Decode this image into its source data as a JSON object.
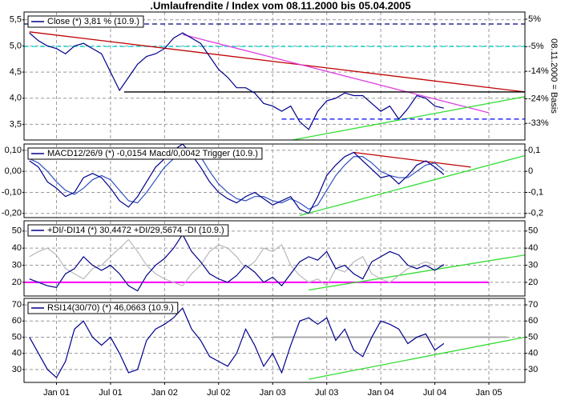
{
  "chart_data": [
    {
      "type": "line",
      "title": ".Umlaufrendite / Index vom 08.11.2000 bis 05.04.2005",
      "y2label": "08.11.2000 = Basis",
      "x": [
        -3,
        -2,
        -1,
        0,
        1,
        2,
        3,
        4,
        5,
        6,
        7,
        8,
        9,
        10,
        11,
        12,
        13,
        14,
        15,
        16,
        17,
        18,
        19,
        20,
        21,
        22,
        23,
        24,
        25,
        26,
        27,
        28,
        29,
        30,
        31,
        32,
        33,
        34,
        35,
        36,
        37,
        38,
        39,
        40,
        41,
        42,
        43
      ],
      "xlim": [
        -3.6,
        52
      ],
      "ylim": [
        3.2,
        5.65
      ],
      "y2lim": [
        -39.05,
        7.62
      ],
      "yticks": [
        {
          "value": 5.5,
          "label": "5,5"
        },
        {
          "value": 5.0,
          "label": "5,0"
        },
        {
          "value": 4.5,
          "label": "4,5"
        },
        {
          "value": 4.0,
          "label": "4,0"
        },
        {
          "value": 3.5,
          "label": "3,5"
        }
      ],
      "y2ticks": [
        {
          "value": 5,
          "label": "5%"
        },
        {
          "value": -5,
          "label": "-5%"
        },
        {
          "value": -14,
          "label": "-14%"
        },
        {
          "value": -24,
          "label": "-24%"
        },
        {
          "value": -33,
          "label": "-33%"
        }
      ],
      "grid": true,
      "series": [
        {
          "name": "Close (*) 3,81 % (10.9.)",
          "color": "#00008b",
          "values": [
            5.25,
            5.1,
            5.0,
            4.95,
            4.85,
            5.0,
            5.05,
            4.95,
            4.85,
            4.5,
            4.15,
            4.4,
            4.65,
            4.8,
            4.85,
            4.95,
            5.15,
            5.25,
            5.15,
            5.05,
            4.8,
            4.55,
            4.4,
            4.2,
            4.2,
            4.1,
            3.9,
            3.85,
            3.75,
            3.85,
            3.55,
            3.4,
            3.75,
            3.95,
            4.0,
            4.1,
            4.05,
            4.05,
            3.9,
            3.75,
            3.85,
            3.6,
            3.8,
            4.05,
            4.0,
            3.85,
            3.81
          ]
        }
      ],
      "lines": [
        {
          "x": [
            -3.6,
            52
          ],
          "y": [
            5.42,
            5.42
          ],
          "color": "#00008b",
          "dash": true
        },
        {
          "x": [
            -3.6,
            52
          ],
          "y": [
            4.99,
            4.99
          ],
          "color": "#00e0e0",
          "dash": true
        },
        {
          "x": [
            -3,
            52
          ],
          "y": [
            5.27,
            4.12
          ],
          "color": "#c00000",
          "dash": false
        },
        {
          "x": [
            14,
            48
          ],
          "y": [
            5.22,
            3.72
          ],
          "color": "#e040e0",
          "dash": false
        },
        {
          "x": [
            7.5,
            52
          ],
          "y": [
            4.12,
            4.12
          ],
          "color": "#000000",
          "dash": false
        },
        {
          "x": [
            26.2,
            52
          ],
          "y": [
            3.2,
            4.03
          ],
          "color": "#33dd33",
          "dash": false
        },
        {
          "x": [
            25,
            52
          ],
          "y": [
            3.6,
            3.6
          ],
          "color": "#0000ff",
          "dash": true
        }
      ]
    },
    {
      "type": "line",
      "x": [
        -3,
        -2,
        -1,
        0,
        1,
        2,
        3,
        4,
        5,
        6,
        7,
        8,
        9,
        10,
        11,
        12,
        13,
        14,
        15,
        16,
        17,
        18,
        19,
        20,
        21,
        22,
        23,
        24,
        25,
        26,
        27,
        28,
        29,
        30,
        31,
        32,
        33,
        34,
        35,
        36,
        37,
        38,
        39,
        40,
        41,
        42,
        43
      ],
      "xlim": [
        -3.6,
        52
      ],
      "ylim": [
        -0.22,
        0.13
      ],
      "y2lim": [
        -0.22,
        0.13
      ],
      "yticks": [
        {
          "value": 0.1,
          "label": "0,10"
        },
        {
          "value": 0,
          "label": "0,00"
        },
        {
          "value": -0.1,
          "label": "-0,10"
        },
        {
          "value": -0.2,
          "label": "-0,20"
        }
      ],
      "y2ticks": [
        {
          "value": 0.1,
          "label": "0,1"
        },
        0,
        {
          "value": -0.1,
          "label": "-0,1"
        },
        {
          "value": -0.2,
          "label": "-0,2"
        }
      ],
      "grid": true,
      "series": [
        {
          "name": "MACD12/26/9 (*) -0,0154 Macd/0,0042 Trigger (10.9.)",
          "color": "#00008b",
          "values": [
            0.05,
            0.02,
            -0.05,
            -0.08,
            -0.12,
            -0.1,
            -0.03,
            -0.01,
            -0.03,
            -0.08,
            -0.14,
            -0.17,
            -0.12,
            -0.05,
            0.02,
            0.06,
            0.1,
            0.13,
            0.08,
            0.02,
            -0.05,
            -0.1,
            -0.13,
            -0.15,
            -0.12,
            -0.1,
            -0.13,
            -0.16,
            -0.14,
            -0.12,
            -0.18,
            -0.2,
            -0.12,
            -0.02,
            0.03,
            0.07,
            0.09,
            0.05,
            0.01,
            -0.03,
            -0.02,
            -0.06,
            -0.02,
            0.03,
            0.05,
            0.02,
            -0.0154
          ]
        },
        {
          "color": "#3050c0",
          "values": [
            0.06,
            0.04,
            0.0,
            -0.05,
            -0.09,
            -0.11,
            -0.08,
            -0.04,
            -0.02,
            -0.04,
            -0.09,
            -0.14,
            -0.15,
            -0.1,
            -0.04,
            0.02,
            0.06,
            0.1,
            0.11,
            0.07,
            0.0,
            -0.06,
            -0.1,
            -0.13,
            -0.14,
            -0.12,
            -0.12,
            -0.14,
            -0.15,
            -0.13,
            -0.15,
            -0.18,
            -0.16,
            -0.09,
            -0.02,
            0.03,
            0.07,
            0.07,
            0.04,
            0.0,
            -0.02,
            -0.03,
            -0.03,
            0.0,
            0.03,
            0.04,
            0.0042
          ]
        }
      ],
      "lines": [
        {
          "x": [
            33,
            46
          ],
          "y": [
            0.09,
            0.02
          ],
          "color": "#c00000",
          "dash": false
        },
        {
          "x": [
            27,
            52
          ],
          "y": [
            -0.21,
            0.075
          ],
          "color": "#33dd33",
          "dash": false
        }
      ]
    },
    {
      "type": "line",
      "x": [
        -3,
        -2,
        -1,
        0,
        1,
        2,
        3,
        4,
        5,
        6,
        7,
        8,
        9,
        10,
        11,
        12,
        13,
        14,
        15,
        16,
        17,
        18,
        19,
        20,
        21,
        22,
        23,
        24,
        25,
        26,
        27,
        28,
        29,
        30,
        31,
        32,
        33,
        34,
        35,
        36,
        37,
        38,
        39,
        40,
        41,
        42,
        43
      ],
      "xlim": [
        -3.6,
        52
      ],
      "ylim": [
        12,
        56
      ],
      "y2lim": [
        12,
        56
      ],
      "yticks": [
        50,
        40,
        30,
        20
      ],
      "y2ticks": [
        50,
        40,
        30,
        20
      ],
      "grid": true,
      "series": [
        {
          "name": "+DI/-DI14 (*) 30,4472 +DI/29,5674 -DI (10.9.)",
          "color": "#00008b",
          "values": [
            22,
            20,
            18,
            17,
            25,
            28,
            35,
            30,
            27,
            30,
            25,
            18,
            15,
            24,
            30,
            34,
            40,
            48,
            38,
            32,
            25,
            22,
            20,
            24,
            30,
            26,
            20,
            23,
            18,
            25,
            32,
            35,
            33,
            38,
            28,
            30,
            25,
            22,
            32,
            35,
            38,
            36,
            30,
            28,
            30,
            27,
            30.4472
          ]
        },
        {
          "color": "#b8b8b8",
          "values": [
            35,
            38,
            40,
            36,
            28,
            25,
            22,
            28,
            30,
            35,
            40,
            45,
            38,
            30,
            25,
            22,
            20,
            18,
            25,
            30,
            38,
            42,
            40,
            35,
            28,
            32,
            40,
            38,
            42,
            30,
            24,
            20,
            22,
            18,
            28,
            26,
            32,
            35,
            25,
            22,
            20,
            24,
            28,
            30,
            32,
            30,
            29.5674
          ]
        }
      ],
      "lines": [
        {
          "x": [
            -3.6,
            48
          ],
          "y": [
            20,
            20
          ],
          "color": "#ff00ff",
          "dash": false,
          "width": 2
        },
        {
          "x": [
            28,
            52
          ],
          "y": [
            15.5,
            36
          ],
          "color": "#33dd33",
          "dash": false
        }
      ]
    },
    {
      "type": "line",
      "x": [
        -3,
        -2,
        -1,
        0,
        1,
        2,
        3,
        4,
        5,
        6,
        7,
        8,
        9,
        10,
        11,
        12,
        13,
        14,
        15,
        16,
        17,
        18,
        19,
        20,
        21,
        22,
        23,
        24,
        25,
        26,
        27,
        28,
        29,
        30,
        31,
        32,
        33,
        34,
        35,
        36,
        37,
        38,
        39,
        40,
        41,
        42,
        43
      ],
      "xlim": [
        -3.6,
        52
      ],
      "ylim": [
        22,
        74
      ],
      "y2lim": [
        22,
        74
      ],
      "yticks": [
        70,
        60,
        50,
        40,
        30
      ],
      "y2ticks": [
        70,
        60,
        50,
        40,
        30
      ],
      "grid": true,
      "xticks": [
        {
          "value": 0,
          "label": "Jan 01"
        },
        {
          "value": 6,
          "label": "Jul 01"
        },
        {
          "value": 12,
          "label": "Jan 02"
        },
        {
          "value": 18,
          "label": "Jul 02"
        },
        {
          "value": 24,
          "label": "Jan 03"
        },
        {
          "value": 30,
          "label": "Jul 03"
        },
        {
          "value": 36,
          "label": "Jan 04"
        },
        {
          "value": 42,
          "label": "Jul 04"
        },
        {
          "value": 48,
          "label": "Jan 05"
        }
      ],
      "series": [
        {
          "name": "RSI14(30/70) (*) 46,0663 (10.9.)",
          "color": "#00008b",
          "values": [
            50,
            40,
            30,
            25,
            35,
            55,
            60,
            50,
            45,
            50,
            40,
            28,
            30,
            48,
            55,
            58,
            62,
            68,
            55,
            48,
            38,
            35,
            32,
            40,
            55,
            45,
            32,
            40,
            28,
            45,
            60,
            62,
            58,
            62,
            48,
            55,
            42,
            38,
            50,
            60,
            58,
            55,
            46,
            50,
            52,
            42,
            46.0663
          ]
        }
      ],
      "lines": [
        {
          "x": [
            24,
            50
          ],
          "y": [
            50,
            50
          ],
          "color": "#aaaaaa",
          "dash": false,
          "width": 2
        },
        {
          "x": [
            28,
            52
          ],
          "y": [
            24,
            50
          ],
          "color": "#33dd33",
          "dash": false
        }
      ]
    }
  ]
}
